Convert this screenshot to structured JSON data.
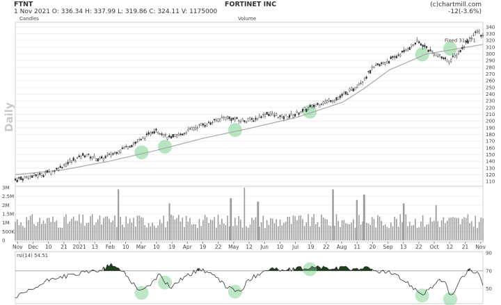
{
  "header": {
    "symbol": "FTNT",
    "date_ohlc": "1 Nov 2021   O: 336.34  H: 337.99  L: 319.86  C: 324.11   V: 1175000",
    "company": "FORTINET INC",
    "source": "(c)chartmill.com",
    "change": "-12(-3.6%)",
    "price_panel_label": "Candles",
    "volume_panel_label": "Volume",
    "watermark": "Daily"
  },
  "chart_data": [
    {
      "type": "line",
      "name": "price",
      "ylim": [
        105,
        345
      ],
      "yticks": [
        110,
        120,
        130,
        140,
        150,
        160,
        170,
        180,
        190,
        200,
        210,
        220,
        230,
        240,
        250,
        260,
        270,
        280,
        290,
        300,
        310,
        320,
        330,
        340
      ],
      "series": [
        {
          "name": "Candles",
          "x": [
            0,
            0.04,
            0.08,
            0.11,
            0.15,
            0.18,
            0.21,
            0.24,
            0.27,
            0.3,
            0.33,
            0.36,
            0.39,
            0.42,
            0.45,
            0.48,
            0.51,
            0.54,
            0.57,
            0.6,
            0.63,
            0.66,
            0.69,
            0.72,
            0.745,
            0.76,
            0.78,
            0.8,
            0.83,
            0.86,
            0.88,
            0.9,
            0.93,
            0.95,
            0.97,
            0.99,
            1.0
          ],
          "y": [
            113,
            118,
            125,
            137,
            150,
            142,
            152,
            162,
            172,
            188,
            174,
            182,
            192,
            198,
            206,
            200,
            202,
            212,
            205,
            210,
            220,
            228,
            234,
            246,
            262,
            276,
            284,
            290,
            303,
            318,
            309,
            298,
            290,
            303,
            322,
            334,
            326
          ]
        },
        {
          "name": "SMA",
          "x": [
            0,
            0.1,
            0.2,
            0.3,
            0.4,
            0.5,
            0.6,
            0.7,
            0.745,
            0.8,
            0.88,
            0.95,
            1.0
          ],
          "y": [
            120,
            127,
            140,
            156,
            174,
            189,
            205,
            228,
            248,
            276,
            300,
            308,
            314
          ]
        }
      ],
      "highlights_x": [
        0.27,
        0.32,
        0.47,
        0.63,
        0.87,
        0.93
      ],
      "annotation": "Fixed 314.71"
    },
    {
      "type": "bar",
      "name": "volume",
      "ylim": [
        0,
        3
      ],
      "yticks": [
        {
          "v": 3,
          "label": "3M"
        },
        {
          "v": 2.5,
          "label": "2.5M"
        },
        {
          "v": 2,
          "label": "2M"
        },
        {
          "v": 1.5,
          "label": "1.5M"
        },
        {
          "v": 1,
          "label": "1M"
        },
        {
          "v": 0.5,
          "label": "500K"
        },
        {
          "v": 0,
          "label": "0"
        }
      ],
      "spikes": [
        {
          "x": 0.22,
          "v": 2.9
        },
        {
          "x": 0.33,
          "v": 2.1
        },
        {
          "x": 0.46,
          "v": 2.4
        },
        {
          "x": 0.49,
          "v": 3.0
        },
        {
          "x": 0.52,
          "v": 2.2
        },
        {
          "x": 0.68,
          "v": 2.9
        },
        {
          "x": 0.73,
          "v": 2.3
        },
        {
          "x": 0.745,
          "v": 2.6
        },
        {
          "x": 0.83,
          "v": 2.1
        },
        {
          "x": 0.9,
          "v": 2.0
        }
      ],
      "xticks": [
        "Nov",
        "Dec",
        "10",
        "21",
        "2021",
        "13",
        "Feb",
        "10",
        "Mar",
        "10",
        "19",
        "Apr",
        "19",
        "22",
        "May",
        "12",
        "Jun",
        "10",
        "Jul",
        "19",
        "22",
        "Aug",
        "11",
        "20",
        "Sep",
        "13",
        "22",
        "Oct",
        "12",
        "21",
        "Nov"
      ]
    },
    {
      "type": "line",
      "name": "rsi",
      "label": "rsi(14) 54.51",
      "ylim": [
        35,
        90
      ],
      "yticks": [
        90,
        70,
        50
      ],
      "overbought": 70,
      "x": [
        0,
        0.04,
        0.08,
        0.12,
        0.16,
        0.19,
        0.2,
        0.23,
        0.25,
        0.27,
        0.29,
        0.31,
        0.33,
        0.36,
        0.38,
        0.4,
        0.42,
        0.45,
        0.48,
        0.5,
        0.53,
        0.55,
        0.57,
        0.6,
        0.62,
        0.65,
        0.68,
        0.7,
        0.73,
        0.745,
        0.76,
        0.8,
        0.83,
        0.86,
        0.87,
        0.89,
        0.91,
        0.92,
        0.93,
        0.95,
        0.97,
        0.99,
        1.0
      ],
      "y": [
        40,
        50,
        62,
        65,
        69,
        72,
        77,
        70,
        57,
        47,
        56,
        66,
        51,
        63,
        68,
        72,
        66,
        53,
        46,
        60,
        70,
        73,
        70,
        72,
        73,
        74,
        72,
        73,
        72,
        74,
        71,
        68,
        60,
        48,
        44,
        52,
        60,
        56,
        40,
        58,
        72,
        66,
        54.5
      ]
    }
  ]
}
